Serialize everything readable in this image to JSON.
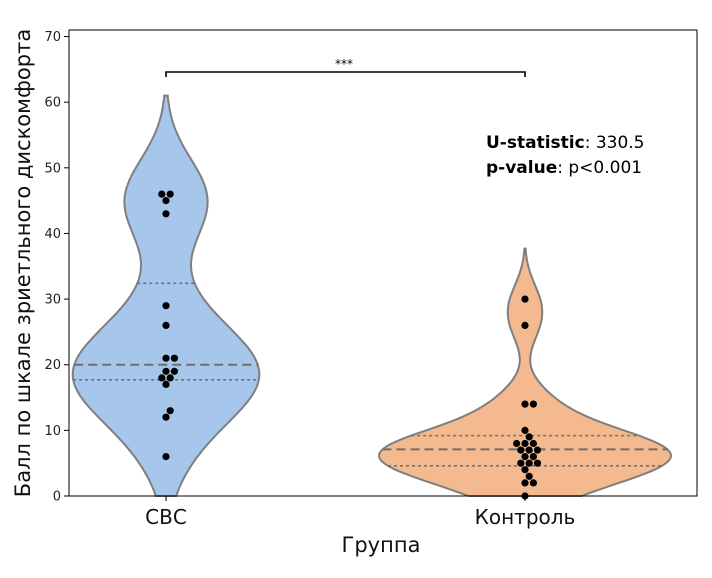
{
  "chart_data": {
    "type": "violin",
    "title": "",
    "xlabel": "Группа",
    "ylabel": "Балл по шкале зриетльного дискомфорта",
    "ylim": [
      0,
      71
    ],
    "yticks": [
      0,
      10,
      20,
      30,
      40,
      50,
      60,
      70
    ],
    "grid": false,
    "legend": "none",
    "categories": [
      "СВС",
      "Контроль"
    ],
    "series": [
      {
        "color": "#a7c6ec",
        "quartiles": {
          "q1": 17.7,
          "median": 20.0,
          "q3": 32.4
        },
        "violin_range": [
          0,
          61
        ],
        "points": [
          46,
          46,
          45,
          43,
          29,
          26,
          21,
          21,
          19,
          19,
          18,
          18,
          17,
          13,
          12,
          6
        ]
      },
      {
        "color": "#f4b98f",
        "quartiles": {
          "q1": 4.6,
          "median": 7.1,
          "q3": 9.2
        },
        "violin_range": [
          0,
          37.7
        ],
        "points": [
          30,
          26,
          14,
          14,
          10,
          9,
          8,
          8,
          8,
          7,
          7,
          7,
          6,
          6,
          5,
          5,
          5,
          4,
          3,
          2,
          2,
          0
        ]
      }
    ],
    "significance": {
      "label": "***"
    },
    "annotation": {
      "u_label": "U-statistic",
      "u_value": ": 330.5",
      "p_label": "p-value",
      "p_value": ": p<0.001"
    }
  }
}
